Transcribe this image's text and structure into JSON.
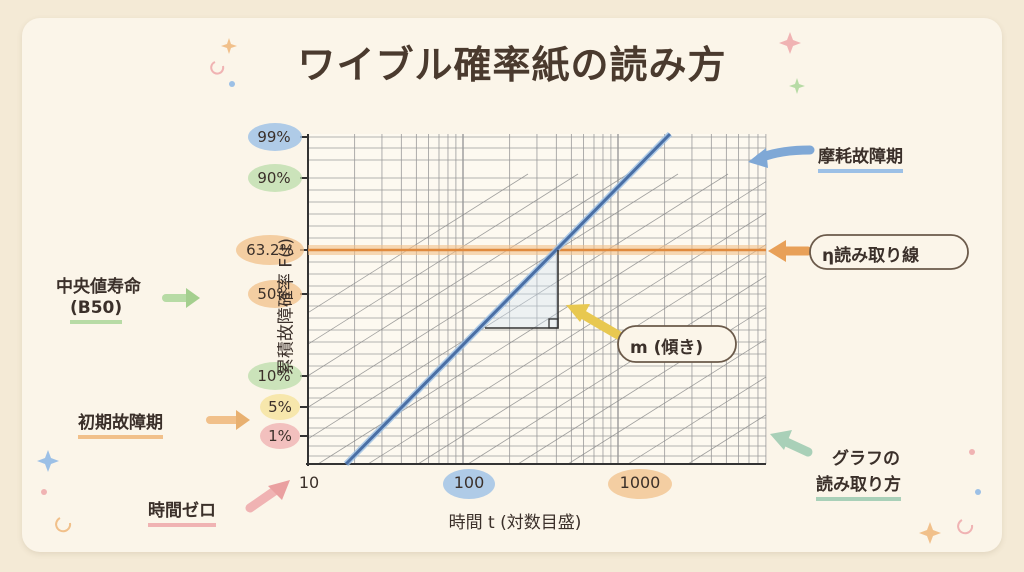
{
  "title": "ワイブル確率紙の読み方",
  "y_axis_title": "累積故障確率 F(t)",
  "x_axis_title": "時間 t (対数目盛)",
  "y_ticks": [
    "99%",
    "90%",
    "63.2%",
    "50%",
    "10%",
    "5%",
    "1%"
  ],
  "x_ticks": [
    "10",
    "100",
    "1000"
  ],
  "annotations": {
    "wear_out": "摩耗故障期",
    "eta_line": "η読み取り線",
    "slope": "m (傾き)",
    "how_to_read_1": "グラフの",
    "how_to_read_2": "読み取り方",
    "median_life_1": "中央値寿命",
    "median_life_2": "(B50)",
    "early_failure": "初期故障期",
    "time_zero": "時間ゼロ"
  },
  "colors": {
    "weibull_line": "#4a6fa5",
    "eta_line": "#e8a058",
    "accent_blue": "#9cc0e6",
    "accent_green": "#b7dba5",
    "accent_orange": "#f1c08a",
    "accent_pink": "#f0b3b3",
    "accent_yellow": "#f6e39c"
  }
}
